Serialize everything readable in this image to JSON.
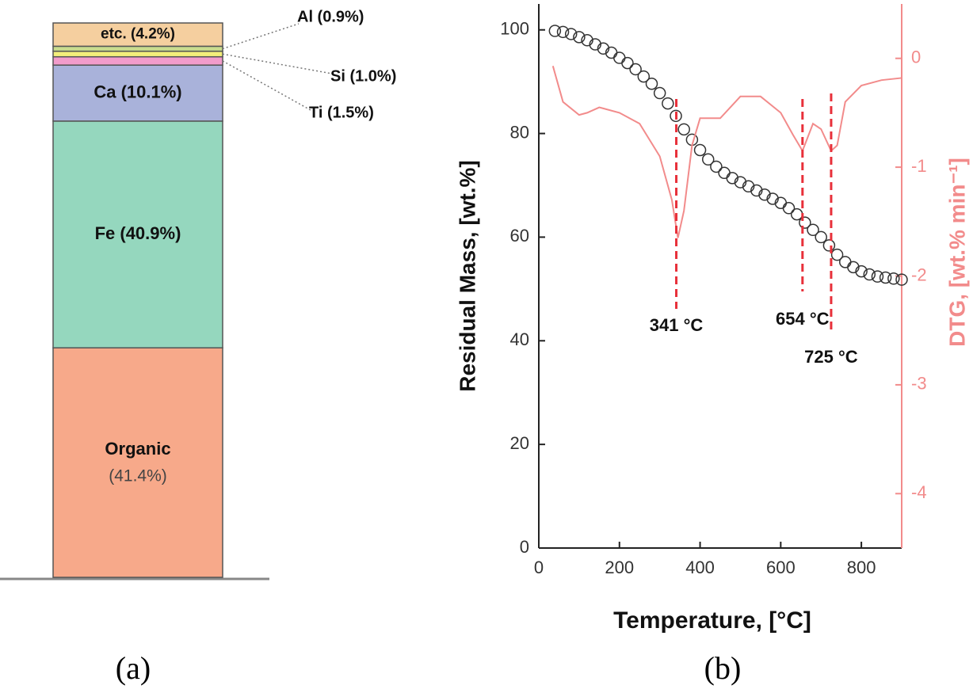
{
  "chart_data": [
    {
      "type": "stacked_bar",
      "caption": "(a)",
      "series": [
        {
          "name": "Organic",
          "color": "#f7a98a",
          "values": [
            41.4
          ],
          "value_labels": [
            "(41.4%)"
          ]
        },
        {
          "color": "#95d7be",
          "values": [
            40.9
          ],
          "value_labels": [
            "Fe (40.9%)"
          ]
        },
        {
          "color": "#a9b2da",
          "values": [
            10.1
          ],
          "value_labels": [
            "Ca (10.1%)"
          ]
        },
        {
          "color": "#f29ccb",
          "values": [
            1.5
          ],
          "value_labels": [
            "Ti (1.5%)"
          ]
        },
        {
          "color": "#f3ee7a",
          "values": [
            1.0
          ],
          "value_labels": [
            "Si (1.0%)"
          ]
        },
        {
          "color": "#c9dc8e",
          "values": [
            0.9
          ],
          "value_labels": [
            "Al (0.9%)"
          ]
        },
        {
          "color": "#f5cf9f",
          "values": [
            4.2
          ],
          "value_labels": [
            "etc. (4.2%)"
          ]
        }
      ]
    },
    {
      "type": "dual_line",
      "caption": "(b)",
      "x_label": "Temperature, [°C]",
      "y_label": "Residual Mass, [wt.%]",
      "y2_label": "DTG, [wt.% min⁻¹]",
      "xlim": [
        0,
        900
      ],
      "xticks": [
        0,
        200,
        400,
        600,
        800
      ],
      "ylim": [
        0,
        105
      ],
      "yticks": [
        0,
        20,
        40,
        60,
        80,
        100
      ],
      "y2lim": [
        -4.5,
        0.5
      ],
      "y2ticks": [
        0,
        -1,
        -2,
        -3,
        -4
      ],
      "series": [
        {
          "name": "Residual Mass",
          "color": "#333333",
          "marker": "circle",
          "x": [
            40,
            60,
            80,
            100,
            120,
            140,
            160,
            180,
            200,
            220,
            240,
            260,
            280,
            300,
            320,
            340,
            360,
            380,
            400,
            420,
            440,
            460,
            480,
            500,
            520,
            540,
            560,
            580,
            600,
            620,
            640,
            660,
            680,
            700,
            720,
            740,
            760,
            780,
            800,
            820,
            840,
            860,
            880,
            900
          ],
          "values": [
            99.8,
            99.6,
            99.2,
            98.6,
            98.0,
            97.2,
            96.4,
            95.6,
            94.6,
            93.6,
            92.4,
            91.0,
            89.6,
            87.8,
            85.8,
            83.4,
            80.8,
            78.8,
            76.8,
            75.0,
            73.6,
            72.4,
            71.4,
            70.6,
            69.8,
            69.0,
            68.2,
            67.4,
            66.6,
            65.6,
            64.4,
            62.8,
            61.4,
            60.0,
            58.4,
            56.6,
            55.2,
            54.2,
            53.4,
            52.8,
            52.4,
            52.2,
            52.0,
            51.8
          ]
        },
        {
          "name": "DTG",
          "color": "#f28b8b",
          "axis": "y2",
          "x": [
            35,
            60,
            100,
            120,
            150,
            200,
            250,
            300,
            330,
            345,
            360,
            380,
            400,
            450,
            500,
            550,
            600,
            630,
            654,
            680,
            700,
            725,
            740,
            760,
            800,
            850,
            900
          ],
          "values": [
            -0.07,
            -0.4,
            -0.52,
            -0.5,
            -0.45,
            -0.5,
            -0.6,
            -0.9,
            -1.3,
            -1.65,
            -1.4,
            -0.8,
            -0.55,
            -0.55,
            -0.35,
            -0.35,
            -0.5,
            -0.7,
            -0.85,
            -0.6,
            -0.65,
            -0.85,
            -0.8,
            -0.4,
            -0.25,
            -0.2,
            -0.18
          ]
        }
      ],
      "annotations": [
        {
          "x": 341,
          "text": "341 °C"
        },
        {
          "x": 654,
          "text": "654 °C"
        },
        {
          "x": 725,
          "text": "725 °C"
        }
      ]
    }
  ]
}
